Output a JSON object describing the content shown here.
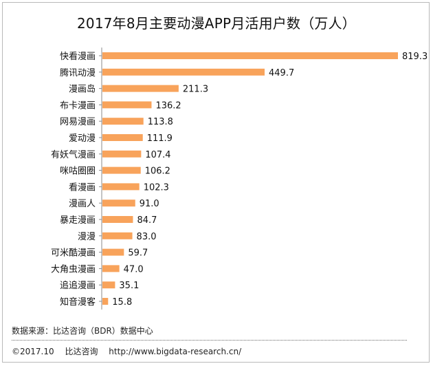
{
  "title": "2017年8月主要动漫APP月活用户数（万人）",
  "source_note": "数据来源：比达咨询（BDR）数据中心",
  "footer": {
    "copyright": "©2017.10",
    "company": "比达咨询",
    "url": "http://www.bigdata-research.cn/"
  },
  "chart_data": {
    "type": "bar",
    "orientation": "horizontal",
    "title": "2017年8月主要动漫APP月活用户数（万人）",
    "categories": [
      "快看漫画",
      "腾讯动漫",
      "漫画岛",
      "布卡漫画",
      "网易漫画",
      "爱动漫",
      "有妖气漫画",
      "咪咕圈圈",
      "看漫画",
      "漫画人",
      "暴走漫画",
      "漫漫",
      "可米酷漫画",
      "大角虫漫画",
      "追追漫画",
      "知音漫客"
    ],
    "values": [
      819.3,
      449.7,
      211.3,
      136.2,
      113.8,
      111.9,
      107.4,
      106.2,
      102.3,
      91.0,
      84.7,
      83.0,
      59.7,
      47.0,
      35.1,
      15.8
    ],
    "value_labels": [
      "819.3",
      "449.7",
      "211.3",
      "136.2",
      "113.8",
      "111.9",
      "107.4",
      "106.2",
      "102.3",
      "91.0",
      "84.7",
      "83.0",
      "59.7",
      "47.0",
      "35.1",
      "15.8"
    ],
    "xlim": [
      0,
      819.3
    ],
    "grid": false,
    "data_labels": true,
    "bar_color": "#f8a35b",
    "axis_color": "#888888"
  }
}
